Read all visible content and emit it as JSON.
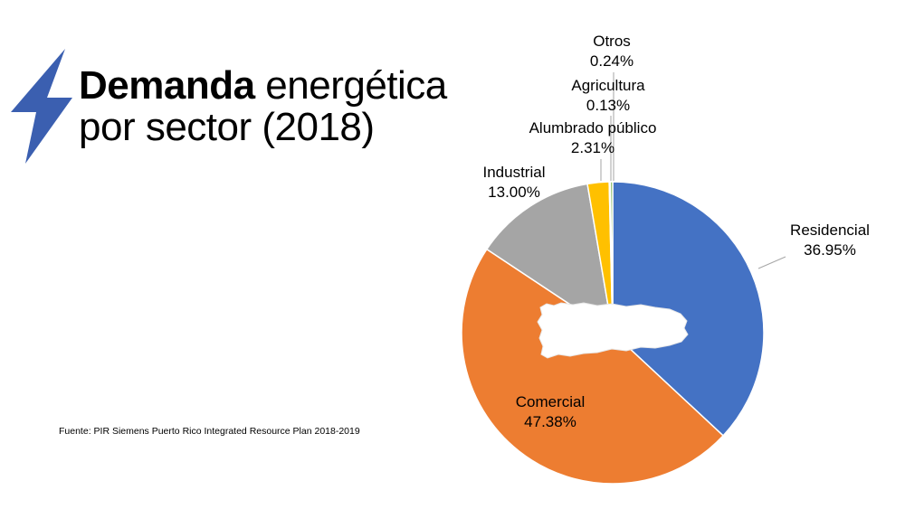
{
  "header": {
    "title_bold": "Demanda",
    "title_rest": " energética",
    "title_line2": "por sector (2018)"
  },
  "source": "Fuente: PIR Siemens Puerto Rico Integrated Resource Plan 2018-2019",
  "icons": {
    "title_icon": "lightning-bolt-icon",
    "center_icon": "puerto-rico-map-icon"
  },
  "chart_data": {
    "type": "pie",
    "title": "",
    "slices": [
      {
        "label": "Residencial",
        "value": 36.95,
        "value_label": "36.95%",
        "color": "#4472C4"
      },
      {
        "label": "Comercial",
        "value": 47.38,
        "value_label": "47.38%",
        "color": "#ED7D31"
      },
      {
        "label": "Industrial",
        "value": 13.0,
        "value_label": "13.00%",
        "color": "#A5A5A5"
      },
      {
        "label": "Alumbrado público",
        "value": 2.31,
        "value_label": "2.31%",
        "color": "#FFC000"
      },
      {
        "label": "Agricultura",
        "value": 0.13,
        "value_label": "0.13%",
        "color": "#5B9BD5"
      },
      {
        "label": "Otros",
        "value": 0.24,
        "value_label": "0.24%",
        "color": "#70AD47"
      }
    ],
    "start_angle_deg": 0,
    "direction": "clockwise",
    "legend": "none",
    "labels": "outside-with-leader-lines"
  }
}
